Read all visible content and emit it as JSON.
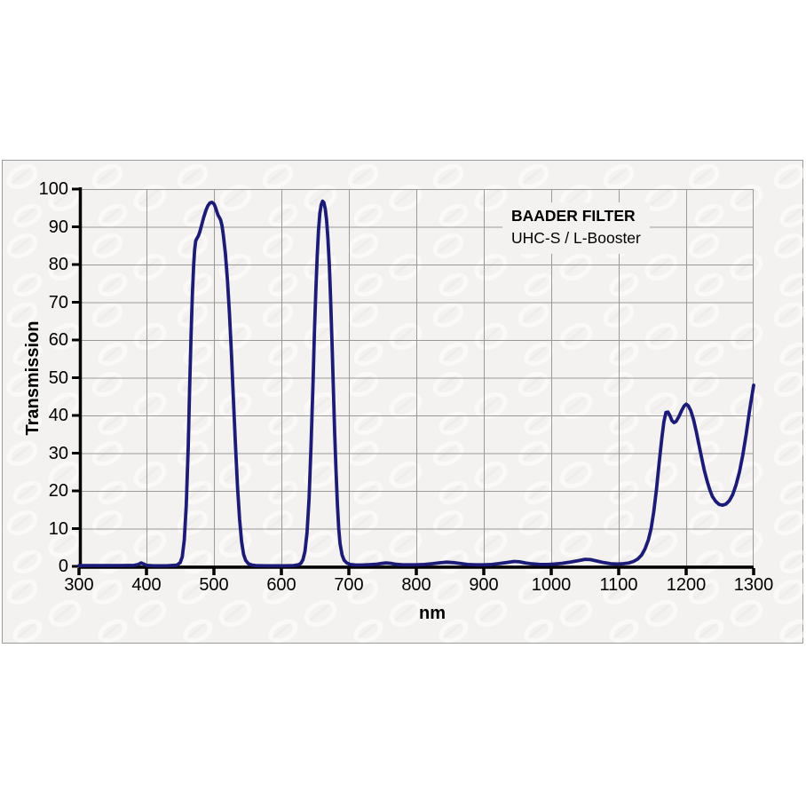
{
  "page": {
    "background": "#ffffff"
  },
  "figure": {
    "background": "#f3f2f0",
    "border_color": "#9b9b9b"
  },
  "chart_data": {
    "type": "line",
    "title": "BAADER FILTER",
    "subtitle": "UHC-S / L-Booster",
    "xlabel": "nm",
    "ylabel": "Transmission",
    "xlim": [
      300,
      1300
    ],
    "ylim": [
      0,
      100
    ],
    "x_ticks": [
      300,
      400,
      500,
      600,
      700,
      800,
      900,
      1000,
      1100,
      1200,
      1300
    ],
    "y_ticks": [
      0,
      10,
      20,
      30,
      40,
      50,
      60,
      70,
      80,
      90,
      100
    ],
    "grid": true,
    "legend": "none",
    "colors": {
      "curve": "#1c1c78",
      "axis": "#000000",
      "grid": "#999999",
      "text": "#000000"
    },
    "series": [
      {
        "name": "UHC-S / L-Booster transmission",
        "points": [
          [
            300,
            0.2
          ],
          [
            330,
            0.2
          ],
          [
            360,
            0.2
          ],
          [
            382,
            0.25
          ],
          [
            388,
            0.5
          ],
          [
            392,
            0.9
          ],
          [
            396,
            0.6
          ],
          [
            400,
            0.25
          ],
          [
            410,
            0.15
          ],
          [
            430,
            0.15
          ],
          [
            445,
            0.3
          ],
          [
            450,
            1
          ],
          [
            453,
            2.5
          ],
          [
            456,
            7
          ],
          [
            459,
            16
          ],
          [
            462,
            32
          ],
          [
            464,
            47
          ],
          [
            466,
            61
          ],
          [
            468,
            72
          ],
          [
            470,
            80
          ],
          [
            471.5,
            84
          ],
          [
            473,
            86.3
          ],
          [
            475,
            87
          ],
          [
            477,
            87.6
          ],
          [
            479,
            88.6
          ],
          [
            482,
            90.6
          ],
          [
            485,
            92.6
          ],
          [
            488,
            94.3
          ],
          [
            491,
            95.6
          ],
          [
            494,
            96.3
          ],
          [
            497,
            96.5
          ],
          [
            500,
            96.1
          ],
          [
            502,
            95.3
          ],
          [
            504,
            94.2
          ],
          [
            506,
            93.1
          ],
          [
            508,
            92.5
          ],
          [
            510,
            91.8
          ],
          [
            512,
            90.3
          ],
          [
            514,
            87.8
          ],
          [
            517,
            83
          ],
          [
            520,
            76
          ],
          [
            523,
            67
          ],
          [
            526,
            56
          ],
          [
            529,
            44
          ],
          [
            532,
            32
          ],
          [
            535,
            21
          ],
          [
            538,
            12.5
          ],
          [
            541,
            6.5
          ],
          [
            544,
            3.2
          ],
          [
            547,
            1.6
          ],
          [
            551,
            0.7
          ],
          [
            556,
            0.35
          ],
          [
            562,
            0.2
          ],
          [
            575,
            0.15
          ],
          [
            590,
            0.15
          ],
          [
            605,
            0.15
          ],
          [
            618,
            0.2
          ],
          [
            625,
            0.4
          ],
          [
            629,
            0.8
          ],
          [
            632,
            1.8
          ],
          [
            635,
            4
          ],
          [
            638,
            9
          ],
          [
            641,
            18
          ],
          [
            644,
            32
          ],
          [
            647,
            49
          ],
          [
            649,
            62
          ],
          [
            651,
            73
          ],
          [
            653,
            82
          ],
          [
            655,
            89
          ],
          [
            657,
            93.5
          ],
          [
            659,
            95.8
          ],
          [
            661,
            96.8
          ],
          [
            663,
            96.4
          ],
          [
            665,
            94.8
          ],
          [
            667,
            91.8
          ],
          [
            669,
            87
          ],
          [
            671,
            80
          ],
          [
            673,
            70.5
          ],
          [
            675,
            59.5
          ],
          [
            677,
            47.5
          ],
          [
            679,
            35.5
          ],
          [
            681,
            25
          ],
          [
            683,
            16.5
          ],
          [
            685,
            10
          ],
          [
            687,
            6
          ],
          [
            690,
            3
          ],
          [
            693,
            1.6
          ],
          [
            697,
            0.9
          ],
          [
            702,
            0.5
          ],
          [
            710,
            0.35
          ],
          [
            720,
            0.35
          ],
          [
            730,
            0.45
          ],
          [
            740,
            0.55
          ],
          [
            748,
            0.75
          ],
          [
            755,
            0.9
          ],
          [
            762,
            0.8
          ],
          [
            770,
            0.55
          ],
          [
            780,
            0.4
          ],
          [
            790,
            0.4
          ],
          [
            800,
            0.4
          ],
          [
            812,
            0.5
          ],
          [
            824,
            0.7
          ],
          [
            835,
            0.95
          ],
          [
            845,
            1.1
          ],
          [
            855,
            1
          ],
          [
            865,
            0.75
          ],
          [
            876,
            0.5
          ],
          [
            888,
            0.4
          ],
          [
            900,
            0.4
          ],
          [
            912,
            0.5
          ],
          [
            924,
            0.75
          ],
          [
            936,
            1.05
          ],
          [
            945,
            1.3
          ],
          [
            953,
            1.2
          ],
          [
            962,
            0.9
          ],
          [
            972,
            0.65
          ],
          [
            983,
            0.5
          ],
          [
            994,
            0.5
          ],
          [
            1005,
            0.6
          ],
          [
            1016,
            0.8
          ],
          [
            1028,
            1.1
          ],
          [
            1040,
            1.5
          ],
          [
            1050,
            1.85
          ],
          [
            1058,
            1.8
          ],
          [
            1068,
            1.4
          ],
          [
            1078,
            1
          ],
          [
            1088,
            0.7
          ],
          [
            1098,
            0.6
          ],
          [
            1107,
            0.7
          ],
          [
            1115,
            0.9
          ],
          [
            1122,
            1.3
          ],
          [
            1128,
            1.9
          ],
          [
            1134,
            3
          ],
          [
            1139,
            4.6
          ],
          [
            1144,
            7
          ],
          [
            1148,
            10
          ],
          [
            1152,
            14.5
          ],
          [
            1156,
            20.5
          ],
          [
            1160,
            27.5
          ],
          [
            1164,
            34
          ],
          [
            1167,
            38.3
          ],
          [
            1170,
            40.8
          ],
          [
            1173,
            40.9
          ],
          [
            1176,
            39.9
          ],
          [
            1179,
            38.6
          ],
          [
            1182,
            38.1
          ],
          [
            1185,
            38.4
          ],
          [
            1189,
            39.6
          ],
          [
            1193,
            41.2
          ],
          [
            1197,
            42.5
          ],
          [
            1200,
            43
          ],
          [
            1203,
            42.6
          ],
          [
            1207,
            41.2
          ],
          [
            1211,
            38.8
          ],
          [
            1215,
            35.7
          ],
          [
            1219,
            32.2
          ],
          [
            1223,
            28.7
          ],
          [
            1227,
            25.4
          ],
          [
            1231,
            22.6
          ],
          [
            1235,
            20.3
          ],
          [
            1239,
            18.5
          ],
          [
            1244,
            17.2
          ],
          [
            1249,
            16.4
          ],
          [
            1254,
            16.2
          ],
          [
            1259,
            16.5
          ],
          [
            1264,
            17.4
          ],
          [
            1269,
            19
          ],
          [
            1274,
            21.6
          ],
          [
            1279,
            25
          ],
          [
            1284,
            29.5
          ],
          [
            1289,
            35
          ],
          [
            1294,
            41.3
          ],
          [
            1300,
            48
          ]
        ]
      }
    ]
  }
}
